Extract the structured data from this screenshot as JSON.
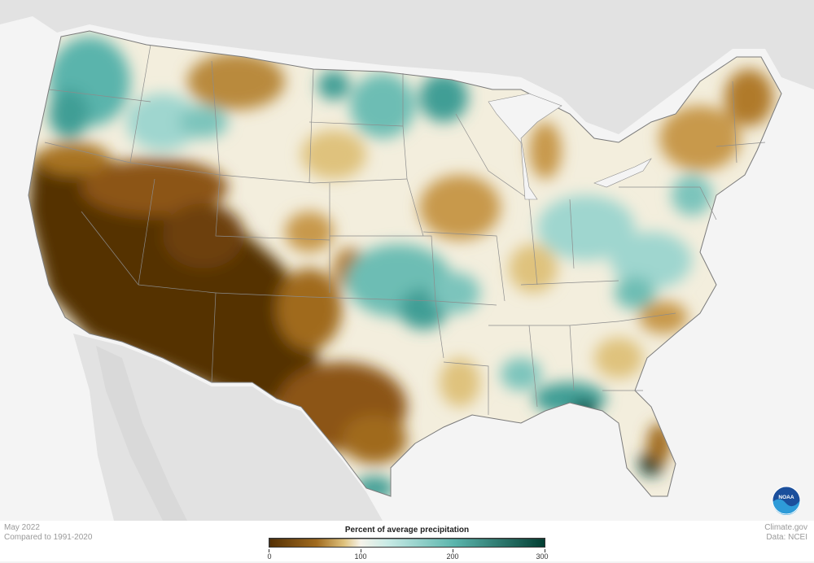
{
  "meta": {
    "month": "May 2022",
    "baseline": "Compared to 1991-2020"
  },
  "credits": {
    "site": "Climate.gov",
    "source": "Data: NCEI"
  },
  "logo": {
    "text": "NOAA"
  },
  "legend": {
    "title": "Percent of average precipitation",
    "ticks": [
      "0",
      "100",
      "200",
      "300"
    ],
    "range": [
      0,
      300
    ],
    "stops": [
      {
        "value": 0,
        "color": "#543005"
      },
      {
        "value": 50,
        "color": "#a06a1e"
      },
      {
        "value": 80,
        "color": "#dfc27d"
      },
      {
        "value": 100,
        "color": "#f6f3ea"
      },
      {
        "value": 130,
        "color": "#c7eae5"
      },
      {
        "value": 200,
        "color": "#5ab4ac"
      },
      {
        "value": 300,
        "color": "#003c30"
      }
    ]
  },
  "colors": {
    "land_background": "#e2e2e2",
    "ocean": "#f4f4f4",
    "border": "#8c8c8c"
  }
}
